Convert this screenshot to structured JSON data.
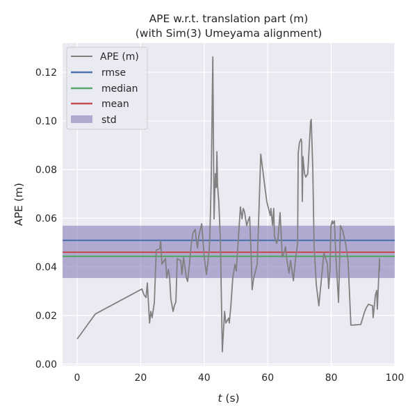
{
  "chart_data": {
    "type": "line",
    "title": "APE w.r.t. translation part (m)",
    "subtitle": "(with Sim(3) Umeyama alignment)",
    "xlabel_italic": "t",
    "xlabel_rest": " (s)",
    "ylabel": "APE (m)",
    "xlim": [
      -4.6,
      100
    ],
    "ylim": [
      -0.0006,
      0.132
    ],
    "xticks": [
      0,
      20,
      40,
      60,
      80,
      100
    ],
    "xtick_labels": [
      "0",
      "20",
      "40",
      "60",
      "80",
      "100"
    ],
    "yticks": [
      0,
      0.02,
      0.04,
      0.06,
      0.08,
      0.1,
      0.12
    ],
    "ytick_labels": [
      "0.00",
      "0.02",
      "0.04",
      "0.06",
      "0.08",
      "0.10",
      "0.12"
    ],
    "grid": true,
    "legend_position": "top-left",
    "legend": [
      "APE (m)",
      "rmse",
      "median",
      "mean",
      "std"
    ],
    "colors": {
      "ape": "#808080",
      "rmse": "#4c72b0",
      "median": "#55a868",
      "mean": "#c44e52",
      "std": "#8172b2",
      "background": "#eaeaf2"
    },
    "stats": {
      "rmse": 0.0509,
      "median": 0.0443,
      "mean": 0.046,
      "std_low": 0.0354,
      "std_high": 0.0569
    },
    "series": [
      {
        "name": "APE (m)",
        "points": [
          [
            0,
            0.0103
          ],
          [
            5.7,
            0.0206
          ],
          [
            20.4,
            0.0309
          ],
          [
            21.0,
            0.0286
          ],
          [
            21.7,
            0.0274
          ],
          [
            22.1,
            0.0334
          ],
          [
            22.8,
            0.0169
          ],
          [
            23.2,
            0.0217
          ],
          [
            23.6,
            0.0191
          ],
          [
            24.3,
            0.0254
          ],
          [
            24.9,
            0.0469
          ],
          [
            26.0,
            0.0474
          ],
          [
            26.3,
            0.0506
          ],
          [
            26.7,
            0.0411
          ],
          [
            27.8,
            0.0434
          ],
          [
            28.2,
            0.0354
          ],
          [
            28.7,
            0.0389
          ],
          [
            29.1,
            0.036
          ],
          [
            29.5,
            0.0269
          ],
          [
            30.2,
            0.0217
          ],
          [
            30.6,
            0.024
          ],
          [
            31.1,
            0.0257
          ],
          [
            31.5,
            0.0434
          ],
          [
            32.6,
            0.0426
          ],
          [
            33.0,
            0.0369
          ],
          [
            33.5,
            0.044
          ],
          [
            34.4,
            0.0354
          ],
          [
            34.8,
            0.034
          ],
          [
            35.4,
            0.0417
          ],
          [
            35.9,
            0.0491
          ],
          [
            36.5,
            0.054
          ],
          [
            37.2,
            0.0554
          ],
          [
            37.4,
            0.052
          ],
          [
            37.9,
            0.0477
          ],
          [
            38.3,
            0.0526
          ],
          [
            39.2,
            0.0577
          ],
          [
            39.6,
            0.0511
          ],
          [
            40.0,
            0.044
          ],
          [
            40.7,
            0.0369
          ],
          [
            41.1,
            0.0411
          ],
          [
            41.6,
            0.0474
          ],
          [
            41.8,
            0.0531
          ],
          [
            42.2,
            0.0754
          ],
          [
            42.7,
            0.1263
          ],
          [
            43.1,
            0.0597
          ],
          [
            43.5,
            0.0783
          ],
          [
            43.8,
            0.0726
          ],
          [
            44.0,
            0.0874
          ],
          [
            44.2,
            0.0734
          ],
          [
            44.6,
            0.0669
          ],
          [
            45.1,
            0.0511
          ],
          [
            45.7,
            0.0051
          ],
          [
            46.4,
            0.0217
          ],
          [
            46.8,
            0.0169
          ],
          [
            47.7,
            0.0189
          ],
          [
            47.9,
            0.0169
          ],
          [
            48.4,
            0.024
          ],
          [
            49.0,
            0.0354
          ],
          [
            49.7,
            0.0411
          ],
          [
            50.1,
            0.0383
          ],
          [
            50.3,
            0.0426
          ],
          [
            50.8,
            0.0526
          ],
          [
            51.4,
            0.0646
          ],
          [
            51.9,
            0.0597
          ],
          [
            52.3,
            0.064
          ],
          [
            52.7,
            0.0626
          ],
          [
            53.4,
            0.0569
          ],
          [
            53.8,
            0.0589
          ],
          [
            54.3,
            0.0606
          ],
          [
            54.7,
            0.0477
          ],
          [
            55.1,
            0.0306
          ],
          [
            55.6,
            0.0354
          ],
          [
            56.7,
            0.0411
          ],
          [
            57.8,
            0.0863
          ],
          [
            59.7,
            0.0669
          ],
          [
            60.8,
            0.0611
          ],
          [
            61.0,
            0.064
          ],
          [
            61.5,
            0.0571
          ],
          [
            61.9,
            0.064
          ],
          [
            62.1,
            0.0526
          ],
          [
            62.8,
            0.0497
          ],
          [
            63.2,
            0.0511
          ],
          [
            63.9,
            0.0623
          ],
          [
            64.6,
            0.044
          ],
          [
            65.2,
            0.046
          ],
          [
            65.6,
            0.0483
          ],
          [
            65.9,
            0.044
          ],
          [
            66.7,
            0.0374
          ],
          [
            67.2,
            0.0426
          ],
          [
            68.1,
            0.0343
          ],
          [
            68.7,
            0.0426
          ],
          [
            69.4,
            0.0497
          ],
          [
            69.6,
            0.0869
          ],
          [
            70.0,
            0.0911
          ],
          [
            70.5,
            0.0926
          ],
          [
            70.7,
            0.0914
          ],
          [
            70.9,
            0.0669
          ],
          [
            71.1,
            0.0854
          ],
          [
            71.6,
            0.0783
          ],
          [
            72.0,
            0.0769
          ],
          [
            72.6,
            0.0783
          ],
          [
            73.5,
            0.0997
          ],
          [
            73.7,
            0.1006
          ],
          [
            74.2,
            0.0797
          ],
          [
            74.6,
            0.0489
          ],
          [
            75.3,
            0.0326
          ],
          [
            76.1,
            0.024
          ],
          [
            77.2,
            0.0391
          ],
          [
            77.7,
            0.0457
          ],
          [
            78.8,
            0.0411
          ],
          [
            79.2,
            0.0311
          ],
          [
            79.6,
            0.0389
          ],
          [
            79.9,
            0.0566
          ],
          [
            80.3,
            0.0589
          ],
          [
            80.5,
            0.0577
          ],
          [
            81.0,
            0.0589
          ],
          [
            81.4,
            0.0457
          ],
          [
            82.3,
            0.0254
          ],
          [
            82.9,
            0.0569
          ],
          [
            83.6,
            0.0549
          ],
          [
            84.5,
            0.0497
          ],
          [
            85.3,
            0.0426
          ],
          [
            86.2,
            0.016
          ],
          [
            89.3,
            0.0163
          ],
          [
            90.4,
            0.0211
          ],
          [
            91.0,
            0.0231
          ],
          [
            91.7,
            0.0246
          ],
          [
            93.0,
            0.024
          ],
          [
            93.2,
            0.0191
          ],
          [
            93.9,
            0.0283
          ],
          [
            94.3,
            0.0303
          ],
          [
            94.5,
            0.0226
          ],
          [
            95.2,
            0.0434
          ],
          [
            95.2,
            0.0383
          ]
        ]
      }
    ]
  }
}
